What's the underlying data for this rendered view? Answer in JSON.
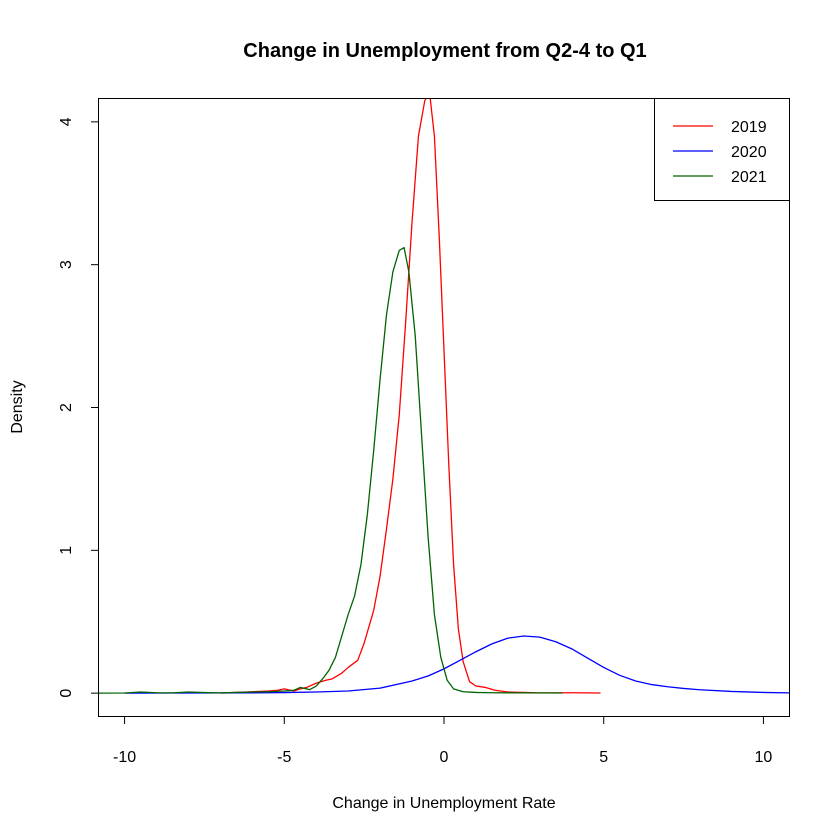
{
  "chart_data": {
    "type": "line",
    "title": "Change in Unemployment from Q2-4 to Q1",
    "xlabel": "Change in Unemployment Rate",
    "ylabel": "Density",
    "xlim": [
      -10.8,
      10.8
    ],
    "ylim": [
      -0.16,
      4.16
    ],
    "xticks": [
      -10,
      -5,
      0,
      5,
      10
    ],
    "xtick_labels": [
      "-10",
      "-5",
      "0",
      "5",
      "10"
    ],
    "yticks": [
      0,
      1,
      2,
      3,
      4
    ],
    "ytick_labels": [
      "0",
      "1",
      "2",
      "3",
      "4"
    ],
    "grid": false,
    "legend_position": "top-right",
    "series": [
      {
        "name": "2019",
        "color": "#ff0000",
        "points": [
          [
            -7.0,
            0.0
          ],
          [
            -6.5,
            0.005
          ],
          [
            -6.0,
            0.01
          ],
          [
            -5.5,
            0.015
          ],
          [
            -5.2,
            0.02
          ],
          [
            -5.0,
            0.03
          ],
          [
            -4.7,
            0.015
          ],
          [
            -4.5,
            0.03
          ],
          [
            -4.3,
            0.04
          ],
          [
            -4.0,
            0.07
          ],
          [
            -3.7,
            0.09
          ],
          [
            -3.5,
            0.1
          ],
          [
            -3.2,
            0.14
          ],
          [
            -3.0,
            0.18
          ],
          [
            -2.7,
            0.23
          ],
          [
            -2.5,
            0.35
          ],
          [
            -2.2,
            0.58
          ],
          [
            -2.0,
            0.82
          ],
          [
            -1.8,
            1.15
          ],
          [
            -1.6,
            1.5
          ],
          [
            -1.4,
            1.95
          ],
          [
            -1.2,
            2.6
          ],
          [
            -1.0,
            3.3
          ],
          [
            -0.8,
            3.9
          ],
          [
            -0.6,
            4.15
          ],
          [
            -0.45,
            4.2
          ],
          [
            -0.3,
            3.9
          ],
          [
            -0.15,
            3.2
          ],
          [
            0.0,
            2.4
          ],
          [
            0.15,
            1.6
          ],
          [
            0.3,
            0.9
          ],
          [
            0.45,
            0.45
          ],
          [
            0.6,
            0.22
          ],
          [
            0.8,
            0.08
          ],
          [
            1.0,
            0.05
          ],
          [
            1.3,
            0.04
          ],
          [
            1.6,
            0.02
          ],
          [
            2.0,
            0.008
          ],
          [
            3.0,
            0.002
          ],
          [
            4.0,
            0.003
          ],
          [
            4.9,
            0.001
          ]
        ]
      },
      {
        "name": "2020",
        "color": "#0000ff",
        "points": [
          [
            -10.0,
            0.0
          ],
          [
            -8.0,
            0.001
          ],
          [
            -6.0,
            0.002
          ],
          [
            -5.0,
            0.004
          ],
          [
            -4.0,
            0.008
          ],
          [
            -3.0,
            0.015
          ],
          [
            -2.0,
            0.035
          ],
          [
            -1.0,
            0.085
          ],
          [
            -0.5,
            0.12
          ],
          [
            0.0,
            0.17
          ],
          [
            0.5,
            0.23
          ],
          [
            1.0,
            0.29
          ],
          [
            1.5,
            0.345
          ],
          [
            2.0,
            0.385
          ],
          [
            2.5,
            0.4
          ],
          [
            3.0,
            0.392
          ],
          [
            3.5,
            0.36
          ],
          [
            4.0,
            0.31
          ],
          [
            4.5,
            0.245
          ],
          [
            5.0,
            0.18
          ],
          [
            5.5,
            0.125
          ],
          [
            6.0,
            0.085
          ],
          [
            6.5,
            0.06
          ],
          [
            7.0,
            0.045
          ],
          [
            7.5,
            0.033
          ],
          [
            8.0,
            0.024
          ],
          [
            9.0,
            0.012
          ],
          [
            10.0,
            0.005
          ],
          [
            10.8,
            0.002
          ]
        ]
      },
      {
        "name": "2021",
        "color": "#006400",
        "points": [
          [
            -10.8,
            0.0
          ],
          [
            -10.0,
            0.001
          ],
          [
            -9.5,
            0.008
          ],
          [
            -9.0,
            0.003
          ],
          [
            -8.5,
            0.002
          ],
          [
            -8.0,
            0.008
          ],
          [
            -7.5,
            0.004
          ],
          [
            -7.0,
            0.002
          ],
          [
            -6.5,
            0.005
          ],
          [
            -6.0,
            0.008
          ],
          [
            -5.5,
            0.01
          ],
          [
            -5.0,
            0.015
          ],
          [
            -4.7,
            0.02
          ],
          [
            -4.5,
            0.04
          ],
          [
            -4.2,
            0.025
          ],
          [
            -4.0,
            0.05
          ],
          [
            -3.8,
            0.1
          ],
          [
            -3.6,
            0.16
          ],
          [
            -3.4,
            0.25
          ],
          [
            -3.2,
            0.4
          ],
          [
            -3.0,
            0.55
          ],
          [
            -2.8,
            0.68
          ],
          [
            -2.6,
            0.9
          ],
          [
            -2.4,
            1.25
          ],
          [
            -2.2,
            1.7
          ],
          [
            -2.0,
            2.2
          ],
          [
            -1.8,
            2.65
          ],
          [
            -1.6,
            2.95
          ],
          [
            -1.4,
            3.1
          ],
          [
            -1.25,
            3.12
          ],
          [
            -1.1,
            2.95
          ],
          [
            -0.9,
            2.5
          ],
          [
            -0.7,
            1.8
          ],
          [
            -0.5,
            1.1
          ],
          [
            -0.3,
            0.55
          ],
          [
            -0.1,
            0.25
          ],
          [
            0.1,
            0.09
          ],
          [
            0.3,
            0.03
          ],
          [
            0.6,
            0.01
          ],
          [
            1.0,
            0.005
          ],
          [
            1.5,
            0.003
          ],
          [
            2.5,
            0.002
          ],
          [
            3.7,
            0.001
          ]
        ]
      }
    ]
  }
}
